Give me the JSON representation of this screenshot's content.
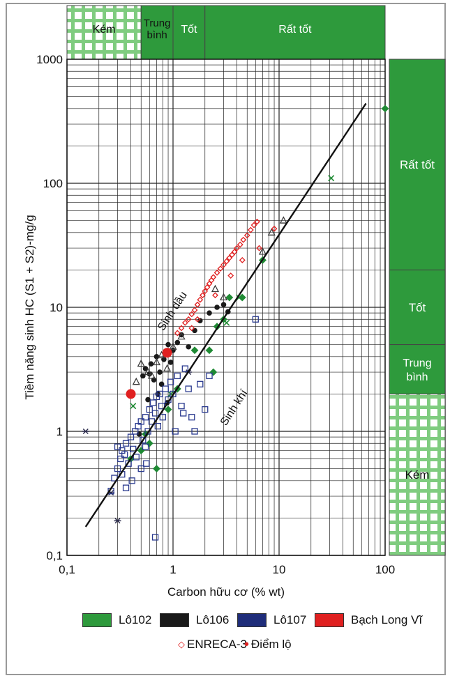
{
  "chart_data": {
    "type": "scatter",
    "xlabel": "Carbon hữu cơ (% wt)",
    "ylabel": "Tiềm năng sinh HC  (S1 + S2)-mg/g",
    "x_scale": "log",
    "y_scale": "log",
    "xlim": [
      0.1,
      100
    ],
    "ylim": [
      0.1,
      1000
    ],
    "x_ticks": [
      "0,1",
      "1",
      "10",
      "100"
    ],
    "y_ticks": [
      "0,1",
      "1",
      "10",
      "100",
      "1000"
    ],
    "grid": true,
    "top_scale": [
      {
        "label": "Kém",
        "from": 0.1,
        "to": 0.5,
        "color": "#7fcc7f",
        "pattern": true
      },
      {
        "label": "Trung bình",
        "from": 0.5,
        "to": 1,
        "color": "#2e9a3c"
      },
      {
        "label": "Tốt",
        "from": 1,
        "to": 2,
        "color": "#2e9a3c"
      },
      {
        "label": "Rất tốt",
        "from": 2,
        "to": 100,
        "color": "#2e9a3c"
      }
    ],
    "right_scale": [
      {
        "label": "Rất tốt",
        "from": 20,
        "to": 1000,
        "color": "#2e9a3c"
      },
      {
        "label": "Tốt",
        "from": 5,
        "to": 20,
        "color": "#2e9a3c"
      },
      {
        "label": "Trung bình",
        "from": 2,
        "to": 5,
        "color": "#2e9a3c"
      },
      {
        "label": "Kém",
        "from": 0.1,
        "to": 2,
        "color": "#7fcc7f",
        "pattern": true
      }
    ],
    "trend_line": {
      "from": [
        0.15,
        0.17
      ],
      "to": [
        66,
        440
      ]
    },
    "annotations": [
      {
        "text": "Sinh dầu",
        "x": 1.05,
        "y": 9.0
      },
      {
        "text": "Sinh khí",
        "x": 4.0,
        "y": 1.5
      }
    ],
    "series": [
      {
        "name": "Lô102",
        "color": "#1f8a34",
        "marker": "diamond",
        "points": [
          [
            0.4,
            0.6
          ],
          [
            0.5,
            0.7
          ],
          [
            0.55,
            0.95
          ],
          [
            0.6,
            0.8
          ],
          [
            0.7,
            0.5
          ],
          [
            0.9,
            1.5
          ],
          [
            1.1,
            2.2
          ],
          [
            1.6,
            4.5
          ],
          [
            2.2,
            4.5
          ],
          [
            2.4,
            3.0
          ],
          [
            2.6,
            7.0
          ],
          [
            3.0,
            8.0
          ],
          [
            3.4,
            12.0
          ],
          [
            4.5,
            12.0
          ],
          [
            7.0,
            24.0
          ],
          [
            100,
            400
          ]
        ]
      },
      {
        "name": "Lô102",
        "color": "#1f8a34",
        "marker": "x",
        "points": [
          [
            0.42,
            1.6
          ],
          [
            0.95,
            2.0
          ],
          [
            3.2,
            7.5
          ],
          [
            4.2,
            12.0
          ],
          [
            31,
            110
          ]
        ]
      },
      {
        "name": "Lô106",
        "color": "#1a1a1a",
        "marker": "circle",
        "points": [
          [
            0.52,
            2.8
          ],
          [
            0.55,
            3.2
          ],
          [
            0.6,
            2.9
          ],
          [
            0.62,
            3.5
          ],
          [
            0.66,
            2.6
          ],
          [
            0.7,
            4.0
          ],
          [
            0.75,
            3.0
          ],
          [
            0.78,
            2.4
          ],
          [
            0.82,
            3.8
          ],
          [
            0.9,
            5.0
          ],
          [
            0.95,
            3.6
          ],
          [
            1.0,
            4.5
          ],
          [
            1.1,
            5.2
          ],
          [
            1.2,
            6.0
          ],
          [
            1.4,
            4.8
          ],
          [
            1.6,
            6.5
          ],
          [
            1.8,
            7.8
          ],
          [
            2.2,
            9.0
          ],
          [
            2.6,
            10.0
          ],
          [
            3.0,
            10.5
          ],
          [
            3.3,
            9.2
          ],
          [
            0.48,
            0.95
          ],
          [
            0.58,
            1.8
          ],
          [
            0.72,
            2.0
          ],
          [
            0.88,
            1.7
          ]
        ]
      },
      {
        "name": "Lô106",
        "color": "#3a3a3a",
        "marker": "triangle",
        "points": [
          [
            0.45,
            2.5
          ],
          [
            0.5,
            3.5
          ],
          [
            0.58,
            3.0
          ],
          [
            0.63,
            2.8
          ],
          [
            0.7,
            3.6
          ],
          [
            0.78,
            4.1
          ],
          [
            0.88,
            3.2
          ],
          [
            1.0,
            4.8
          ],
          [
            1.2,
            5.8
          ],
          [
            2.5,
            14.0
          ],
          [
            3.0,
            12.0
          ],
          [
            7.0,
            28.0
          ],
          [
            8.5,
            40.0
          ],
          [
            11.0,
            50.0
          ]
        ]
      },
      {
        "name": "Lô106",
        "color": "#2a2a4a",
        "marker": "asterisk",
        "points": [
          [
            0.15,
            1.0
          ],
          [
            0.26,
            0.32
          ],
          [
            0.3,
            0.19
          ],
          [
            1.4,
            3.0
          ]
        ]
      },
      {
        "name": "Lô107",
        "color": "#2a3a8f",
        "marker": "square",
        "points": [
          [
            0.26,
            0.33
          ],
          [
            0.28,
            0.42
          ],
          [
            0.3,
            0.5
          ],
          [
            0.32,
            0.6
          ],
          [
            0.33,
            0.7
          ],
          [
            0.35,
            0.65
          ],
          [
            0.36,
            0.8
          ],
          [
            0.38,
            0.55
          ],
          [
            0.4,
            0.9
          ],
          [
            0.42,
            0.72
          ],
          [
            0.44,
            1.0
          ],
          [
            0.45,
            0.62
          ],
          [
            0.47,
            1.1
          ],
          [
            0.5,
            1.2
          ],
          [
            0.52,
            0.85
          ],
          [
            0.55,
            1.3
          ],
          [
            0.58,
            1.0
          ],
          [
            0.6,
            1.5
          ],
          [
            0.63,
            1.2
          ],
          [
            0.65,
            1.7
          ],
          [
            0.68,
            1.4
          ],
          [
            0.7,
            1.9
          ],
          [
            0.72,
            1.1
          ],
          [
            0.75,
            2.0
          ],
          [
            0.78,
            1.6
          ],
          [
            0.8,
            1.3
          ],
          [
            0.85,
            2.2
          ],
          [
            0.9,
            1.8
          ],
          [
            0.95,
            2.5
          ],
          [
            1.0,
            2.0
          ],
          [
            1.1,
            2.8
          ],
          [
            1.2,
            1.6
          ],
          [
            1.3,
            3.2
          ],
          [
            1.4,
            2.2
          ],
          [
            1.5,
            1.3
          ],
          [
            1.6,
            1.0
          ],
          [
            1.8,
            2.4
          ],
          [
            2.0,
            1.5
          ],
          [
            2.2,
            2.8
          ],
          [
            0.68,
            0.14
          ],
          [
            0.36,
            0.35
          ],
          [
            0.41,
            0.4
          ],
          [
            0.5,
            0.5
          ],
          [
            0.55,
            0.75
          ],
          [
            6.0,
            8.0
          ],
          [
            0.3,
            0.75
          ],
          [
            0.33,
            0.45
          ],
          [
            0.56,
            0.55
          ],
          [
            1.05,
            1.0
          ],
          [
            1.25,
            1.4
          ]
        ]
      },
      {
        "name": "Bạch Long Vĩ",
        "color": "#e02020",
        "marker": "diamond",
        "points": [
          [
            1.1,
            6.2
          ],
          [
            1.2,
            6.8
          ],
          [
            1.3,
            7.5
          ],
          [
            1.4,
            8.0
          ],
          [
            1.5,
            8.8
          ],
          [
            1.6,
            9.5
          ],
          [
            1.7,
            10.5
          ],
          [
            1.8,
            11.5
          ],
          [
            1.9,
            12.5
          ],
          [
            2.0,
            13.5
          ],
          [
            2.1,
            14.5
          ],
          [
            2.2,
            15.5
          ],
          [
            2.3,
            16.5
          ],
          [
            2.4,
            17.5
          ],
          [
            2.6,
            19.0
          ],
          [
            2.8,
            20.5
          ],
          [
            3.0,
            22.0
          ],
          [
            3.2,
            23.5
          ],
          [
            3.4,
            25.0
          ],
          [
            3.6,
            26.5
          ],
          [
            3.8,
            28.0
          ],
          [
            4.0,
            30.0
          ],
          [
            4.3,
            32.0
          ],
          [
            4.6,
            35.0
          ],
          [
            5.0,
            38.0
          ],
          [
            5.4,
            42.0
          ],
          [
            5.8,
            46.0
          ],
          [
            6.2,
            49.0
          ],
          [
            1.5,
            6.8
          ],
          [
            1.7,
            8.0
          ],
          [
            2.5,
            12.5
          ],
          [
            3.5,
            18.0
          ],
          [
            4.5,
            24.0
          ],
          [
            6.5,
            30.0
          ],
          [
            9.0,
            43.0
          ]
        ]
      },
      {
        "name": "Bạch Long Vĩ",
        "color": "#e02020",
        "marker": "big-circle",
        "points": [
          [
            0.4,
            2.0
          ],
          [
            0.88,
            4.3
          ]
        ]
      }
    ],
    "legend": [
      {
        "name": "Lô102",
        "color": "#2e9a3c"
      },
      {
        "name": "Lô106",
        "color": "#1a1a1a"
      },
      {
        "name": "Lô107",
        "color": "#1f2d7a"
      },
      {
        "name": "Bạch Long Vĩ",
        "color": "#e02020"
      }
    ],
    "legend2": [
      {
        "name": "ENRECA-3",
        "marker": "◇",
        "color": "#e02020"
      },
      {
        "name": "Điểm lộ",
        "marker": "•",
        "color": "#e02020"
      }
    ]
  }
}
